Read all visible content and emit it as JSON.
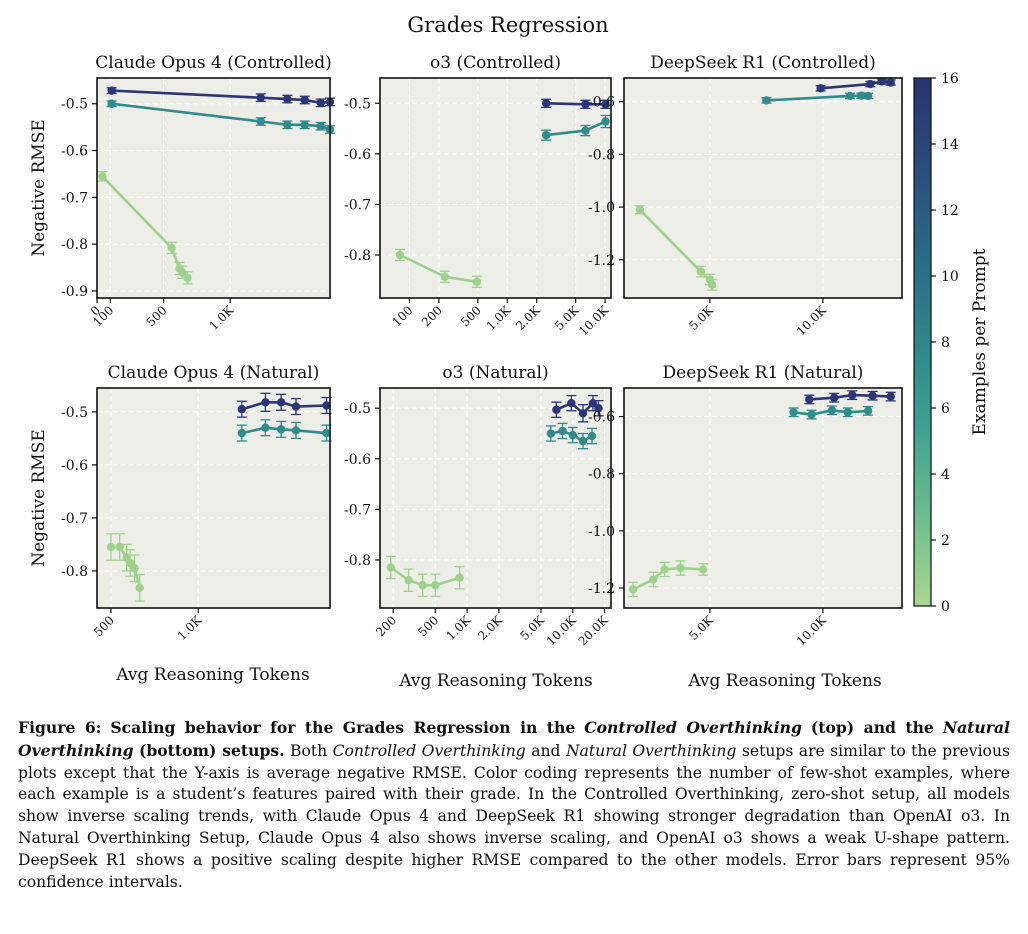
{
  "figure": {
    "suptitle": "Grades Regression",
    "colorbar_label": "Examples per Prompt",
    "xlabel": "Avg Reasoning Tokens",
    "ylabel": "Negative RMSE"
  },
  "colors": {
    "panel_bg": "#eeeee8",
    "series_0": "#9ed18c",
    "series_8": "#2f8b8c",
    "series_16": "#2b3578",
    "colorbar_stops": [
      "#a8d68e",
      "#6dbe8e",
      "#3fa290",
      "#2e868c",
      "#2a6a86",
      "#2a4d7d",
      "#28346e"
    ]
  },
  "colorbar": {
    "min": 0,
    "max": 16,
    "ticks": [
      "0",
      "2",
      "4",
      "6",
      "8",
      "10",
      "12",
      "14",
      "16"
    ]
  },
  "chart_data": [
    {
      "title": "Claude Opus 4 (Controlled)",
      "type": "line",
      "xlim": [
        0,
        1750
      ],
      "ylim": [
        -0.915,
        -0.445
      ],
      "x_ticks": [
        {
          "v": 0,
          "t": "0"
        },
        {
          "v": 100,
          "t": "100"
        },
        {
          "v": 500,
          "t": "500"
        },
        {
          "v": 1000,
          "t": "1.0K"
        }
      ],
      "y_ticks": [
        {
          "v": -0.5,
          "t": "-0.5"
        },
        {
          "v": -0.6,
          "t": "-0.6"
        },
        {
          "v": -0.7,
          "t": "-0.7"
        },
        {
          "v": -0.8,
          "t": "-0.8"
        },
        {
          "v": -0.9,
          "t": "-0.9"
        }
      ],
      "grid": true,
      "series": [
        {
          "examples": 0,
          "x": [
            40,
            560,
            620,
            640,
            680
          ],
          "y": [
            -0.655,
            -0.808,
            -0.852,
            -0.86,
            -0.872
          ],
          "err": [
            0.01,
            0.012,
            0.013,
            0.013,
            0.013
          ]
        },
        {
          "examples": 8,
          "x": [
            110,
            1230,
            1430,
            1560,
            1680,
            1750
          ],
          "y": [
            -0.5,
            -0.538,
            -0.545,
            -0.545,
            -0.548,
            -0.555
          ],
          "err": [
            0.006,
            0.008,
            0.008,
            0.008,
            0.008,
            0.008
          ]
        },
        {
          "examples": 16,
          "x": [
            110,
            1230,
            1430,
            1560,
            1680,
            1750
          ],
          "y": [
            -0.472,
            -0.487,
            -0.49,
            -0.492,
            -0.498,
            -0.496
          ],
          "err": [
            0.006,
            0.008,
            0.008,
            0.008,
            0.008,
            0.008
          ]
        }
      ]
    },
    {
      "title": "o3 (Controlled)",
      "type": "line",
      "xlim": [
        50,
        11500
      ],
      "ylim": [
        -0.885,
        -0.45
      ],
      "xscale": "log",
      "x_ticks": [
        {
          "v": 100,
          "t": "100"
        },
        {
          "v": 200,
          "t": "200"
        },
        {
          "v": 500,
          "t": "500"
        },
        {
          "v": 1000,
          "t": "1.0K"
        },
        {
          "v": 2000,
          "t": "2.0K"
        },
        {
          "v": 5000,
          "t": "5.0K"
        },
        {
          "v": 10000,
          "t": "10.0K"
        }
      ],
      "y_ticks": [
        {
          "v": -0.5,
          "t": "-0.5"
        },
        {
          "v": -0.6,
          "t": "-0.6"
        },
        {
          "v": -0.7,
          "t": "-0.7"
        },
        {
          "v": -0.8,
          "t": "-0.8"
        }
      ],
      "grid": true,
      "series": [
        {
          "examples": 0,
          "x": [
            80,
            230,
            490
          ],
          "y": [
            -0.8,
            -0.843,
            -0.853
          ],
          "err": [
            0.011,
            0.011,
            0.011
          ]
        },
        {
          "examples": 8,
          "x": [
            2500,
            6300,
            10100
          ],
          "y": [
            -0.563,
            -0.554,
            -0.536
          ],
          "err": [
            0.01,
            0.01,
            0.012
          ]
        },
        {
          "examples": 16,
          "x": [
            2500,
            6300,
            10100
          ],
          "y": [
            -0.5,
            -0.502,
            -0.502
          ],
          "err": [
            0.008,
            0.008,
            0.008
          ]
        }
      ]
    },
    {
      "title": "DeepSeek R1 (Controlled)",
      "type": "line",
      "xlim": [
        1200,
        13500
      ],
      "ylim": [
        -1.345,
        -0.51
      ],
      "x_ticks": [
        {
          "v": 5000,
          "t": "5.0K"
        },
        {
          "v": 10000,
          "t": "10.0K"
        }
      ],
      "y_ticks": [
        {
          "v": -0.6,
          "t": "-0.6"
        },
        {
          "v": -0.8,
          "t": "-0.8"
        },
        {
          "v": -1.0,
          "t": "-1.0"
        },
        {
          "v": -1.2,
          "t": "-1.2"
        }
      ],
      "grid": true,
      "series": [
        {
          "examples": 0,
          "x": [
            1900,
            4600,
            5000,
            5100
          ],
          "y": [
            -1.01,
            -1.245,
            -1.275,
            -1.295
          ],
          "err": [
            0.015,
            0.02,
            0.02,
            0.02
          ]
        },
        {
          "examples": 8,
          "x": [
            7500,
            11200,
            11700,
            12000
          ],
          "y": [
            -0.595,
            -0.578,
            -0.577,
            -0.578
          ],
          "err": [
            0.01,
            0.01,
            0.01,
            0.01
          ]
        },
        {
          "examples": 16,
          "x": [
            9900,
            12100,
            12600,
            13000
          ],
          "y": [
            -0.549,
            -0.533,
            -0.523,
            -0.527
          ],
          "err": [
            0.01,
            0.01,
            0.01,
            0.01
          ]
        }
      ]
    },
    {
      "title": "Claude Opus 4 (Natural)",
      "type": "line",
      "xlim": [
        420,
        1755
      ],
      "ylim": [
        -0.87,
        -0.455
      ],
      "x_ticks": [
        {
          "v": 500,
          "t": "500"
        },
        {
          "v": 1000,
          "t": "1.0K"
        }
      ],
      "y_ticks": [
        {
          "v": -0.5,
          "t": "-0.5"
        },
        {
          "v": -0.6,
          "t": "-0.6"
        },
        {
          "v": -0.7,
          "t": "-0.7"
        },
        {
          "v": -0.8,
          "t": "-0.8"
        }
      ],
      "grid": true,
      "series": [
        {
          "examples": 0,
          "x": [
            500,
            550,
            590,
            610,
            635,
            665
          ],
          "y": [
            -0.755,
            -0.755,
            -0.775,
            -0.785,
            -0.795,
            -0.832
          ],
          "err": [
            0.025,
            0.025,
            0.025,
            0.025,
            0.025,
            0.025
          ]
        },
        {
          "examples": 8,
          "x": [
            1250,
            1385,
            1475,
            1560,
            1735
          ],
          "y": [
            -0.54,
            -0.53,
            -0.533,
            -0.535,
            -0.54
          ],
          "err": [
            0.015,
            0.015,
            0.015,
            0.015,
            0.015
          ]
        },
        {
          "examples": 16,
          "x": [
            1250,
            1385,
            1475,
            1560,
            1735
          ],
          "y": [
            -0.495,
            -0.482,
            -0.482,
            -0.49,
            -0.488
          ],
          "err": [
            0.015,
            0.017,
            0.015,
            0.015,
            0.015
          ]
        }
      ]
    },
    {
      "title": "o3 (Natural)",
      "type": "line",
      "xlim": [
        150,
        23000
      ],
      "ylim": [
        -0.895,
        -0.46
      ],
      "xscale": "log",
      "x_ticks": [
        {
          "v": 200,
          "t": "200"
        },
        {
          "v": 500,
          "t": "500"
        },
        {
          "v": 1000,
          "t": "1.0K"
        },
        {
          "v": 2000,
          "t": "2.0K"
        },
        {
          "v": 5000,
          "t": "5.0K"
        },
        {
          "v": 10000,
          "t": "10.0K"
        },
        {
          "v": 20000,
          "t": "20.0K"
        }
      ],
      "y_ticks": [
        {
          "v": -0.5,
          "t": "-0.5"
        },
        {
          "v": -0.6,
          "t": "-0.6"
        },
        {
          "v": -0.7,
          "t": "-0.7"
        },
        {
          "v": -0.8,
          "t": "-0.8"
        }
      ],
      "grid": true,
      "series": [
        {
          "examples": 0,
          "x": [
            190,
            280,
            380,
            500,
            850
          ],
          "y": [
            -0.815,
            -0.84,
            -0.85,
            -0.85,
            -0.835
          ],
          "err": [
            0.022,
            0.022,
            0.022,
            0.022,
            0.022
          ]
        },
        {
          "examples": 8,
          "x": [
            6200,
            8000,
            10000,
            12500,
            15200
          ],
          "y": [
            -0.55,
            -0.545,
            -0.553,
            -0.565,
            -0.555
          ],
          "err": [
            0.015,
            0.015,
            0.015,
            0.015,
            0.015
          ]
        },
        {
          "examples": 16,
          "x": [
            7000,
            9700,
            12500,
            15500,
            17500
          ],
          "y": [
            -0.503,
            -0.49,
            -0.51,
            -0.49,
            -0.5
          ],
          "err": [
            0.015,
            0.015,
            0.017,
            0.015,
            0.015
          ]
        }
      ]
    },
    {
      "title": "DeepSeek R1 (Natural)",
      "type": "line",
      "xlim": [
        1200,
        13500
      ],
      "ylim": [
        -1.27,
        -0.5
      ],
      "x_ticks": [
        {
          "v": 5000,
          "t": "5.0K"
        },
        {
          "v": 10000,
          "t": "10.0K"
        }
      ],
      "y_ticks": [
        {
          "v": -0.6,
          "t": "-0.6"
        },
        {
          "v": -0.8,
          "t": "-0.8"
        },
        {
          "v": -1.0,
          "t": "-1.0"
        },
        {
          "v": -1.2,
          "t": "-1.2"
        }
      ],
      "grid": true,
      "series": [
        {
          "examples": 0,
          "x": [
            1600,
            2500,
            3000,
            3700,
            4700
          ],
          "y": [
            -1.205,
            -1.17,
            -1.135,
            -1.13,
            -1.135
          ],
          "err": [
            0.025,
            0.025,
            0.025,
            0.025,
            0.02
          ]
        },
        {
          "examples": 8,
          "x": [
            8700,
            9500,
            10400,
            11100,
            12000
          ],
          "y": [
            -0.585,
            -0.593,
            -0.578,
            -0.585,
            -0.58
          ],
          "err": [
            0.015,
            0.015,
            0.015,
            0.015,
            0.015
          ]
        },
        {
          "examples": 16,
          "x": [
            9400,
            10500,
            11300,
            12200,
            13000
          ],
          "y": [
            -0.54,
            -0.534,
            -0.525,
            -0.527,
            -0.53
          ],
          "err": [
            0.015,
            0.015,
            0.015,
            0.015,
            0.015
          ]
        }
      ]
    }
  ],
  "caption": {
    "label": "Figure 6:",
    "bold_1": "Scaling behavior for the Grades Regression in the",
    "bold_italic_1": "Controlled Overthinking",
    "bold_2": "(top) and the",
    "bold_italic_2": "Natural Overthinking",
    "bold_3": "(bottom) setups.",
    "text_1": "Both",
    "italic_1": "Controlled Overthinking",
    "text_2": "and",
    "italic_2": "Natural Overthinking",
    "text_3": "setups are similar to the previous plots except that the Y-axis is average negative RMSE. Color coding represents the number of few-shot examples, where each example is a student’s features paired with their grade. In the Controlled Overthinking, zero-shot setup, all models show inverse scaling trends, with Claude Opus 4 and DeepSeek R1 showing stronger degradation than OpenAI o3. In Natural Overthinking Setup, Claude Opus 4 also shows inverse scaling, and OpenAI o3 shows a weak U-shape pattern. DeepSeek R1 shows a positive scaling despite higher RMSE compared to the other models. Error bars represent 95% confidence intervals."
  }
}
